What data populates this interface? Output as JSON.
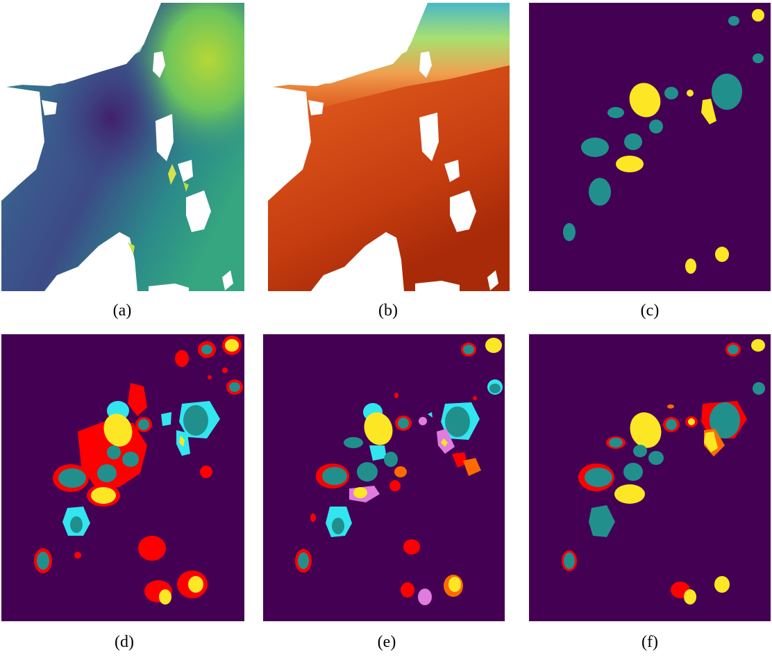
{
  "captions": {
    "a": "(a)",
    "b": "(b)",
    "c": "(c)",
    "d": "(d)",
    "e": "(e)",
    "f": "(f)"
  },
  "colors": {
    "background_purple": "#440154",
    "teal": "#21908d",
    "yellow": "#fde725",
    "red": "#ff0000",
    "cyan": "#32e6f0",
    "pink": "#e07be0",
    "orange": "#ff6a00",
    "land_white": "#ffffff"
  }
}
